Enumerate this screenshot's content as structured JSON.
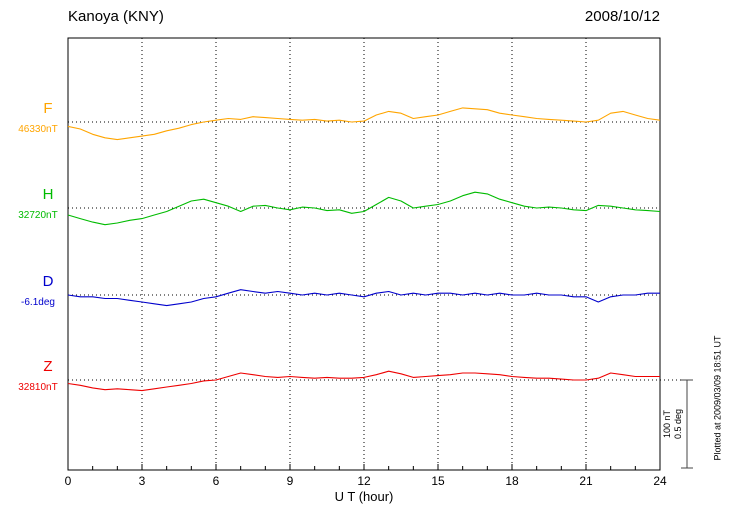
{
  "header": {
    "title": "Kanoya (KNY)",
    "date": "2008/10/12"
  },
  "axis": {
    "xlabel": "U T (hour)",
    "x_ticks": [
      0,
      3,
      6,
      9,
      12,
      15,
      18,
      21,
      24
    ],
    "x_range": [
      0,
      24
    ],
    "minor_tick_step_hours": 1
  },
  "scale_bar": {
    "labels": [
      "100 nT",
      "0.5 deg"
    ]
  },
  "footer_note": "Plotted at 2009/03/09 18:51 UT",
  "chart_data": {
    "type": "line",
    "title": "Kanoya (KNY) magnetogram 2008/10/12",
    "xlabel": "U T (hour)",
    "ylabel": "",
    "x_range": [
      0,
      24
    ],
    "x_start_hour": 0,
    "x_step_hours": 0.5,
    "grid": "dotted vertical gridlines every 3 hours; dotted horizontal baseline per component",
    "legend_position": "left margin, one colored letter per component",
    "values_are": "deviation from component baseline",
    "scale": {
      "nT_per_division": 100,
      "deg_per_division": 0.5
    },
    "series": [
      {
        "name": "F",
        "unit": "nT",
        "baseline_label": "46330nT",
        "baseline_value": 46330,
        "color": "#FFA500",
        "values": [
          -5,
          -8,
          -14,
          -18,
          -20,
          -18,
          -16,
          -14,
          -10,
          -7,
          -3,
          0,
          2,
          4,
          3,
          6,
          5,
          4,
          3,
          2,
          3,
          1,
          2,
          0,
          1,
          8,
          12,
          10,
          4,
          6,
          8,
          12,
          16,
          15,
          14,
          10,
          8,
          6,
          4,
          3,
          2,
          1,
          0,
          2,
          10,
          12,
          8,
          4,
          2
        ]
      },
      {
        "name": "H",
        "unit": "nT",
        "baseline_label": "32720nT",
        "baseline_value": 32720,
        "color": "#00BB00",
        "values": [
          -8,
          -12,
          -16,
          -19,
          -17,
          -14,
          -12,
          -8,
          -4,
          2,
          8,
          10,
          6,
          2,
          -4,
          2,
          3,
          0,
          -2,
          1,
          0,
          -3,
          -2,
          -6,
          -4,
          4,
          12,
          8,
          0,
          2,
          4,
          8,
          14,
          18,
          16,
          10,
          6,
          2,
          0,
          1,
          0,
          -2,
          -3,
          3,
          2,
          0,
          -2,
          -3,
          -4
        ]
      },
      {
        "name": "D",
        "unit": "deg",
        "baseline_label": "-6.1deg",
        "baseline_value": -6.1,
        "color": "#0000CC",
        "values": [
          0,
          -0.01,
          -0.01,
          -0.02,
          -0.02,
          -0.03,
          -0.04,
          -0.05,
          -0.06,
          -0.05,
          -0.04,
          -0.02,
          -0.01,
          0.01,
          0.03,
          0.02,
          0.01,
          0.02,
          0.01,
          0,
          0.01,
          0,
          0.01,
          0,
          -0.01,
          0.01,
          0.02,
          0,
          0.01,
          0,
          0.01,
          0.01,
          0,
          0.01,
          0,
          0.01,
          0,
          0,
          0.01,
          0,
          0,
          -0.01,
          -0.01,
          -0.04,
          -0.01,
          0,
          0,
          0.01,
          0.01
        ]
      },
      {
        "name": "Z",
        "unit": "nT",
        "baseline_label": "32810nT",
        "baseline_value": 32810,
        "color": "#EE0000",
        "values": [
          -4,
          -6,
          -9,
          -11,
          -10,
          -11,
          -12,
          -10,
          -8,
          -6,
          -4,
          -1,
          0,
          4,
          8,
          6,
          4,
          3,
          4,
          3,
          2,
          3,
          2,
          2,
          3,
          6,
          10,
          7,
          3,
          4,
          5,
          6,
          8,
          8,
          7,
          6,
          4,
          3,
          2,
          2,
          1,
          0,
          0,
          2,
          8,
          6,
          4,
          4,
          4
        ]
      }
    ]
  }
}
